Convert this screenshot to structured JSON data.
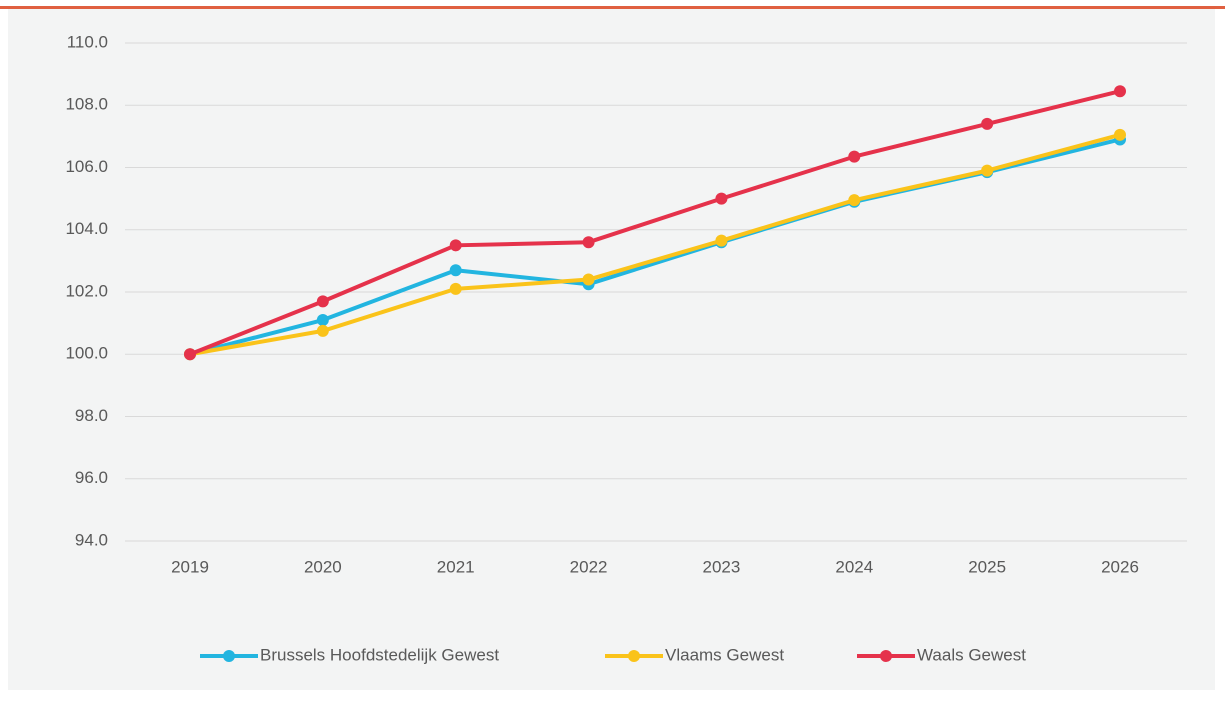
{
  "chart_data": {
    "type": "line",
    "categories": [
      "2019",
      "2020",
      "2021",
      "2022",
      "2023",
      "2024",
      "2025",
      "2026"
    ],
    "series": [
      {
        "name": "Brussels Hoofdstedelijk Gewest",
        "color": "#22b5e0",
        "values": [
          100,
          101.1,
          102.7,
          102.25,
          103.6,
          104.9,
          105.85,
          106.9
        ]
      },
      {
        "name": "Vlaams Gewest",
        "color": "#fac31a",
        "values": [
          100,
          100.75,
          102.1,
          102.4,
          103.65,
          104.95,
          105.9,
          107.05
        ]
      },
      {
        "name": "Waals Gewest",
        "color": "#e5324b",
        "values": [
          100,
          101.7,
          103.5,
          103.6,
          105.0,
          106.35,
          107.4,
          108.45
        ]
      }
    ],
    "ylim": [
      94,
      110
    ],
    "yticks": [
      {
        "value": 94,
        "label": "94.0"
      },
      {
        "value": 96,
        "label": "96.0"
      },
      {
        "value": 98,
        "label": "98.0"
      },
      {
        "value": 100,
        "label": "100.0"
      },
      {
        "value": 102,
        "label": "102.0"
      },
      {
        "value": 104,
        "label": "104.0"
      },
      {
        "value": 106,
        "label": "106.0"
      },
      {
        "value": 108,
        "label": "108.0"
      },
      {
        "value": 110,
        "label": "110.0"
      }
    ],
    "grid": true,
    "legend": "bottom"
  }
}
